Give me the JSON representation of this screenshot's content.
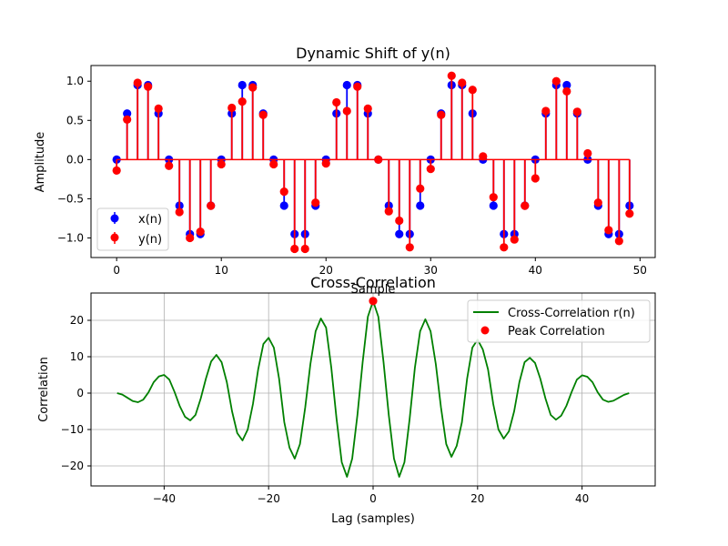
{
  "chart_data": [
    {
      "type": "stem",
      "title": "Dynamic Shift of y(n)",
      "xlabel": "Sample",
      "ylabel": "Amplitude",
      "xlim": [
        -2.45,
        51.45
      ],
      "ylim": [
        -1.25,
        1.2
      ],
      "x_ticks": [
        0,
        10,
        20,
        30,
        40,
        50
      ],
      "y_ticks": [
        -1.0,
        -0.5,
        0.0,
        0.5,
        1.0
      ],
      "x_tick_labels": [
        "0",
        "10",
        "20",
        "30",
        "40",
        "50"
      ],
      "y_tick_labels": [
        "−1.0",
        "−0.5",
        "0.0",
        "0.5",
        "1.0"
      ],
      "grid": false,
      "legend": "lower-left",
      "x": [
        0,
        1,
        2,
        3,
        4,
        5,
        6,
        7,
        8,
        9,
        10,
        11,
        12,
        13,
        14,
        15,
        16,
        17,
        18,
        19,
        20,
        21,
        22,
        23,
        24,
        25,
        26,
        27,
        28,
        29,
        30,
        31,
        32,
        33,
        34,
        35,
        36,
        37,
        38,
        39,
        40,
        41,
        42,
        43,
        44,
        45,
        46,
        47,
        48,
        49
      ],
      "series": [
        {
          "name": "x(n)",
          "color": "#0000ff",
          "values": [
            0,
            0.588,
            0.951,
            0.951,
            0.588,
            0,
            -0.588,
            -0.951,
            -0.951,
            -0.588,
            0,
            0.588,
            0.951,
            0.951,
            0.588,
            0,
            -0.588,
            -0.951,
            -0.951,
            -0.588,
            0,
            0.588,
            0.951,
            0.951,
            0.588,
            0,
            -0.588,
            -0.951,
            -0.951,
            -0.588,
            0,
            0.588,
            0.951,
            0.951,
            0.588,
            0,
            -0.588,
            -0.951,
            -0.951,
            -0.588,
            0,
            0.588,
            0.951,
            0.951,
            0.588,
            0,
            -0.588,
            -0.951,
            -0.951,
            -0.588
          ]
        },
        {
          "name": "y(n)",
          "color": "#ff0000",
          "values": [
            -0.14,
            0.51,
            0.98,
            0.93,
            0.65,
            -0.08,
            -0.67,
            -1.0,
            -0.92,
            -0.59,
            -0.06,
            0.66,
            0.74,
            0.92,
            0.57,
            -0.06,
            -0.41,
            -1.14,
            -1.14,
            -0.55,
            -0.05,
            0.73,
            0.62,
            0.93,
            0.65,
            0.0,
            -0.66,
            -0.78,
            -1.12,
            -0.37,
            -0.12,
            0.57,
            1.07,
            0.98,
            0.89,
            0.04,
            -0.48,
            -1.12,
            -1.02,
            -0.59,
            -0.24,
            0.62,
            1.0,
            0.87,
            0.61,
            0.08,
            -0.55,
            -0.9,
            -1.04,
            -0.69
          ]
        }
      ]
    },
    {
      "type": "line",
      "title": "Cross-Correlation",
      "xlabel": "Lag (samples)",
      "ylabel": "Correlation",
      "xlim": [
        -54,
        54
      ],
      "ylim": [
        -25.5,
        27.5
      ],
      "x_ticks": [
        -40,
        -20,
        0,
        20,
        40
      ],
      "y_ticks": [
        -20,
        -10,
        0,
        10,
        20
      ],
      "x_tick_labels": [
        "−40",
        "−20",
        "0",
        "20",
        "40"
      ],
      "y_tick_labels": [
        "−20",
        "−10",
        "0",
        "10",
        "20"
      ],
      "grid": true,
      "legend": "top-right",
      "x": [
        -49,
        -48,
        -47,
        -46,
        -45,
        -44,
        -43,
        -42,
        -41,
        -40,
        -39,
        -38,
        -37,
        -36,
        -35,
        -34,
        -33,
        -32,
        -31,
        -30,
        -29,
        -28,
        -27,
        -26,
        -25,
        -24,
        -23,
        -22,
        -21,
        -20,
        -19,
        -18,
        -17,
        -16,
        -15,
        -14,
        -13,
        -12,
        -11,
        -10,
        -9,
        -8,
        -7,
        -6,
        -5,
        -4,
        -3,
        -2,
        -1,
        0,
        1,
        2,
        3,
        4,
        5,
        6,
        7,
        8,
        9,
        10,
        11,
        12,
        13,
        14,
        15,
        16,
        17,
        18,
        19,
        20,
        21,
        22,
        23,
        24,
        25,
        26,
        27,
        28,
        29,
        30,
        31,
        32,
        33,
        34,
        35,
        36,
        37,
        38,
        39,
        40,
        41,
        42,
        43,
        44,
        45,
        46,
        47,
        48,
        49
      ],
      "series": [
        {
          "name": "Cross-Correlation r(n)",
          "color": "#008000",
          "values": [
            0,
            -0.4,
            -1.3,
            -2.2,
            -2.5,
            -1.8,
            0.2,
            3.0,
            4.6,
            5.0,
            3.7,
            0.3,
            -3.6,
            -6.5,
            -7.5,
            -6.0,
            -1.5,
            4.0,
            8.7,
            10.5,
            8.5,
            3.0,
            -5.0,
            -11.0,
            -13.0,
            -10.0,
            -3.0,
            6.5,
            13.5,
            15.2,
            12.5,
            4.0,
            -8.0,
            -15.0,
            -18.0,
            -14.0,
            -4.0,
            8.0,
            17.0,
            20.5,
            18.0,
            7.0,
            -7.0,
            -19.0,
            -23.0,
            -18.0,
            -6.0,
            8.5,
            21.0,
            25.3,
            21.0,
            8.5,
            -6.0,
            -18.0,
            -23.0,
            -19.0,
            -7.0,
            7.0,
            17.0,
            20.3,
            17.0,
            8.0,
            -4.0,
            -14.0,
            -17.5,
            -14.5,
            -8.0,
            4.0,
            12.5,
            14.7,
            12.0,
            6.5,
            -3.0,
            -10.0,
            -12.5,
            -10.5,
            -5.0,
            3.0,
            8.5,
            9.7,
            8.3,
            4.0,
            -1.5,
            -6.0,
            -7.3,
            -6.2,
            -3.5,
            0.3,
            3.7,
            4.9,
            4.5,
            3.0,
            0.2,
            -1.8,
            -2.4,
            -2.1,
            -1.3,
            -0.5,
            0
          ]
        },
        {
          "name": "Peak Correlation",
          "color": "#ff0000",
          "x": [
            0
          ],
          "values": [
            25.3
          ]
        }
      ]
    }
  ]
}
